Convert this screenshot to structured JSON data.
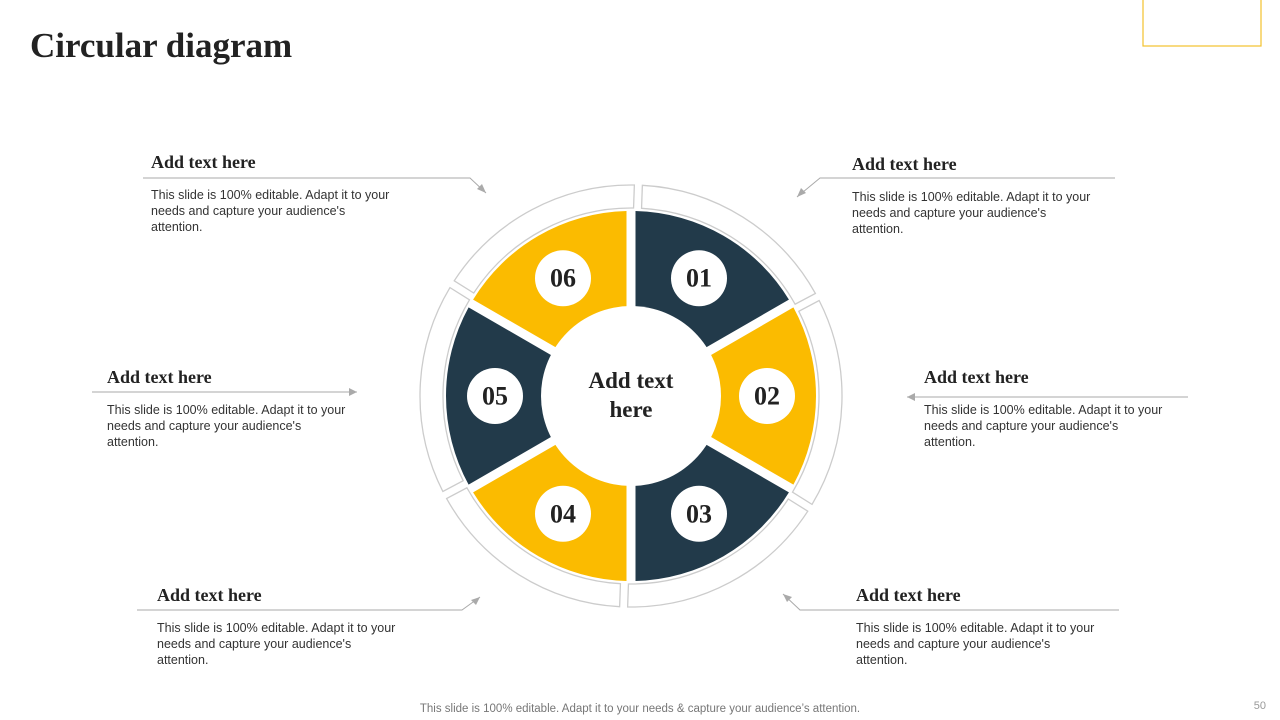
{
  "title": "Circular diagram",
  "page_number": "50",
  "footer": "This slide is 100% editable. Adapt it to your needs & capture your audience’s attention.",
  "center_text": "Add text here",
  "segments": [
    {
      "label": "01"
    },
    {
      "label": "02"
    },
    {
      "label": "03"
    },
    {
      "label": "04"
    },
    {
      "label": "05"
    },
    {
      "label": "06"
    }
  ],
  "callouts": [
    {
      "heading": "Add text here",
      "body": "This slide is 100% editable. Adapt it to your needs and capture your audience's attention."
    },
    {
      "heading": "Add text here",
      "body": "This slide is 100% editable. Adapt it to your needs and capture your audience's attention."
    },
    {
      "heading": "Add text here",
      "body": "This slide is 100% editable. Adapt it to your needs and capture your audience's attention."
    },
    {
      "heading": "Add text here",
      "body": "This slide is 100% editable. Adapt it to your needs and capture your audience's attention."
    },
    {
      "heading": "Add text here",
      "body": "This slide is 100% editable. Adapt it to your needs and capture your audience's attention."
    },
    {
      "heading": "Add text here",
      "body": "This slide is 100% editable. Adapt it to your needs and capture your audience's attention."
    }
  ]
}
